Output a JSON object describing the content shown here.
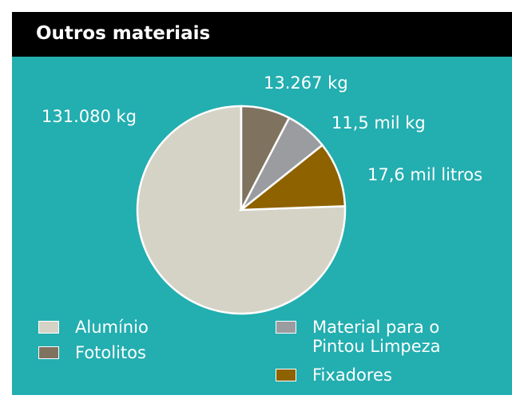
{
  "chart_data": {
    "type": "pie",
    "title": "Outros materiais",
    "categories": [
      "Alumínio",
      "Fotolitos",
      "Material para o Pintou Limpeza",
      "Fixadores"
    ],
    "values": [
      131080,
      13267,
      11500,
      17600
    ],
    "value_labels": [
      "131.080 kg",
      "13.267 kg",
      "11,5 mil kg",
      "17,6 mil litros"
    ],
    "colors": [
      "#d5d3c6",
      "#7f7360",
      "#9a9ca0",
      "#8f6200"
    ]
  }
}
